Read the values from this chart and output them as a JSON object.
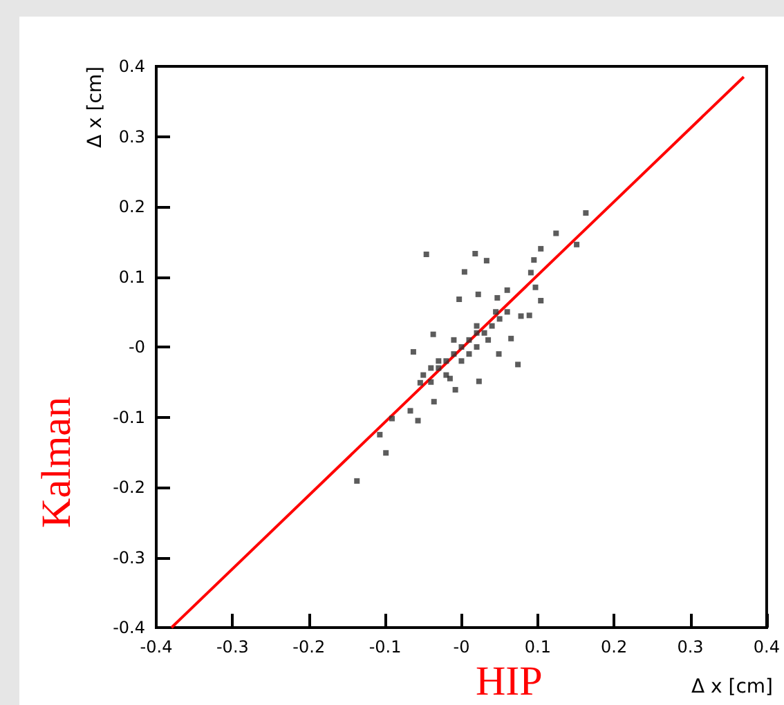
{
  "chart_data": {
    "type": "scatter",
    "xlabel": "Δ x [cm]",
    "ylabel": "Δ x [cm]",
    "annotations": [
      "Kalman",
      "HIP"
    ],
    "marker": "square",
    "xlim": [
      -0.4,
      0.4
    ],
    "ylim": [
      -0.4,
      0.4
    ],
    "xticks": [
      -0.4,
      -0.3,
      -0.2,
      -0.1,
      {
        "value": 0,
        "label": "-0"
      },
      0.1,
      0.2,
      0.3,
      0.4
    ],
    "yticks": [
      -0.4,
      -0.3,
      -0.2,
      -0.1,
      {
        "value": 0,
        "label": "-0"
      },
      0.1,
      0.2,
      0.3,
      0.4
    ],
    "series": [
      {
        "type": "scatter",
        "color": "#333333",
        "x": [
          0.163,
          0.124,
          0.104,
          0.151,
          0.095,
          0.091,
          0.097,
          0.104,
          -0.046,
          0.018,
          0.033,
          0.004,
          -0.003,
          0.06,
          0.047,
          0.022,
          0.078,
          0.089,
          0.065,
          0.074,
          0.049,
          -0.063,
          -0.037,
          -0.057,
          -0.067,
          -0.091,
          -0.107,
          -0.099,
          -0.137,
          -0.036,
          -0.054,
          0.023,
          -0.008,
          -0.03,
          -0.02,
          -0.01,
          0,
          0.01,
          0.02,
          0.03,
          0.02,
          -0.02,
          -0.03,
          0.01,
          -0.01,
          0.04,
          0.05,
          0.06,
          -0.04,
          -0.04,
          0,
          0.02,
          -0.015,
          0.035,
          0.045,
          -0.05
        ],
        "values": [
          0.191,
          0.162,
          0.14,
          0.146,
          0.124,
          0.106,
          0.085,
          0.066,
          0.132,
          0.133,
          0.123,
          0.107,
          0.068,
          0.081,
          0.07,
          0.075,
          0.044,
          0.045,
          0.012,
          -0.025,
          -0.01,
          -0.007,
          0.018,
          -0.105,
          -0.091,
          -0.102,
          -0.125,
          -0.151,
          -0.191,
          -0.078,
          -0.051,
          -0.049,
          -0.061,
          -0.03,
          -0.02,
          -0.01,
          0,
          0.01,
          0.02,
          0.02,
          0.03,
          -0.04,
          -0.02,
          -0.01,
          0.01,
          0.03,
          0.04,
          0.05,
          -0.03,
          -0.05,
          -0.02,
          0,
          -0.045,
          0.01,
          0.05,
          -0.04
        ]
      },
      {
        "type": "line",
        "color": "#ff0000",
        "marker": "none",
        "line_style": "solid",
        "x": [
          -0.38,
          0.37
        ],
        "values": [
          -0.4,
          0.385
        ]
      }
    ]
  }
}
